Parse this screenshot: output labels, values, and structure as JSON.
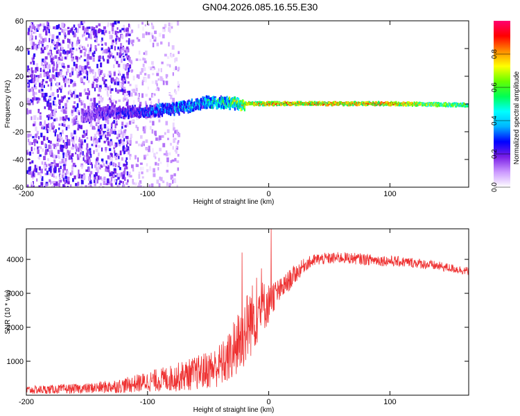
{
  "title": "GN04.2026.085.16.55.E30",
  "colors": {
    "snr_line": "#ee3030",
    "axis": "#000000"
  },
  "chart_data": [
    {
      "type": "heatmap",
      "name": "spectrogram",
      "xlabel": "Height of straight line (km)",
      "ylabel": "Frequency (Hz)",
      "xlim": [
        -200,
        165
      ],
      "ylim": [
        -60,
        60
      ],
      "xticks": [
        -200,
        -100,
        0,
        100
      ],
      "yticks": [
        60,
        40,
        20,
        0,
        -20,
        -40,
        -60
      ],
      "colorbar": {
        "label": "Normalized spectral amplitude",
        "range": [
          0,
          1
        ],
        "ticks": [
          0.0,
          0.2,
          0.4,
          0.6,
          0.8
        ],
        "colormap": [
          "#ffffff",
          "#cc99ff",
          "#7a1fe6",
          "#0000ff",
          "#00b4ff",
          "#00ffff",
          "#00ff55",
          "#66ff00",
          "#ffff00",
          "#ff8c00",
          "#ff0000",
          "#ff0070"
        ]
      },
      "features": [
        {
          "desc": "broadband noise",
          "x_range": [
            -200,
            -115
          ],
          "freq_range": [
            -60,
            60
          ],
          "amplitude": 0.1
        },
        {
          "desc": "sparse noise",
          "x_range": [
            -115,
            -75
          ],
          "freq_range": [
            -60,
            60
          ],
          "amplitude": 0.05
        },
        {
          "desc": "signal trace",
          "x_points": [
            -155,
            -130,
            -100,
            -75,
            -50,
            -35,
            -20,
            0,
            50,
            100,
            165
          ],
          "freq_points": [
            -8,
            -6,
            -5,
            -3,
            2,
            1,
            0,
            0,
            0,
            0,
            -1
          ],
          "amplitude_points": [
            0.2,
            0.25,
            0.35,
            0.45,
            0.5,
            0.6,
            0.85,
            0.9,
            0.9,
            0.9,
            0.65
          ]
        }
      ]
    },
    {
      "type": "line",
      "name": "snr",
      "xlabel": "Height of straight line (km)",
      "ylabel": "SNR (10 * v/v)",
      "xlim": [
        -200,
        165
      ],
      "ylim": [
        0,
        4900
      ],
      "xticks": [
        -200,
        -100,
        0,
        100
      ],
      "yticks": [
        1000,
        2000,
        3000,
        4000
      ],
      "series": [
        {
          "name": "SNR",
          "envelope_x": [
            -200,
            -150,
            -120,
            -100,
            -80,
            -60,
            -45,
            -35,
            -25,
            -15,
            -5,
            0,
            3,
            10,
            20,
            30,
            40,
            60,
            80,
            100,
            120,
            140,
            165
          ],
          "envelope_mean": [
            150,
            200,
            280,
            400,
            500,
            650,
            800,
            1000,
            1500,
            2200,
            2600,
            2700,
            2900,
            3100,
            3500,
            3850,
            4000,
            4050,
            4000,
            3950,
            3900,
            3800,
            3650
          ],
          "envelope_spread": [
            120,
            150,
            220,
            300,
            400,
            500,
            600,
            700,
            1000,
            1100,
            800,
            600,
            500,
            350,
            300,
            200,
            180,
            170,
            170,
            160,
            150,
            140,
            120
          ],
          "spikes": [
            {
              "x": -22,
              "y": 4200
            },
            {
              "x": 2,
              "y": 4900
            }
          ]
        }
      ]
    }
  ]
}
